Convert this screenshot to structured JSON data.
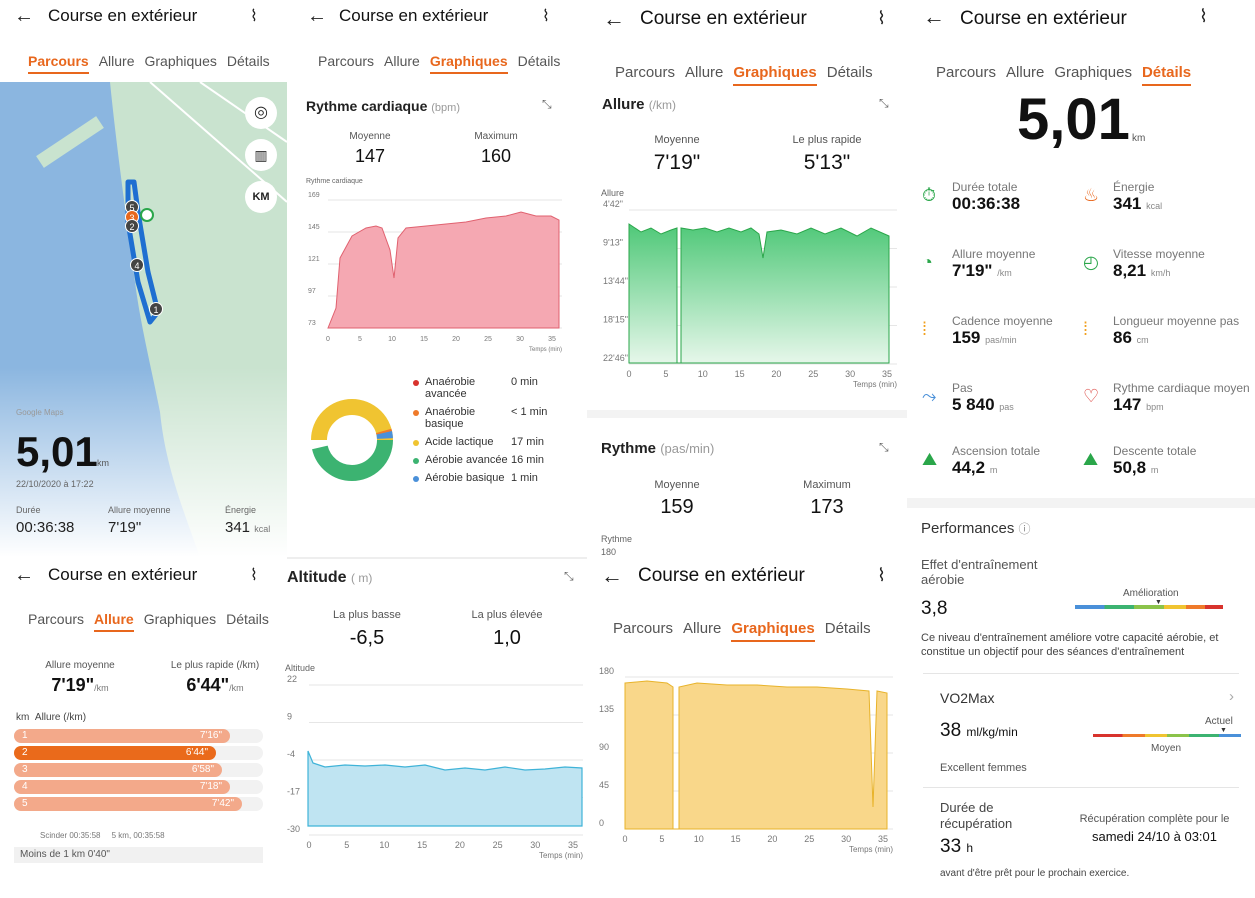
{
  "app": {
    "title": "Course en extérieur"
  },
  "tabs": [
    "Parcours",
    "Allure",
    "Graphiques",
    "Détails"
  ],
  "map": {
    "google": "Google Maps",
    "distance": "5,01",
    "unit": "km",
    "date": "22/10/2020 à 17:22",
    "duree_lbl": "Durée",
    "duree": "00:36:38",
    "allure_lbl": "Allure moyenne",
    "allure": "7'19\"",
    "energie_lbl": "Énergie",
    "energie": "341",
    "energie_unit": "kcal",
    "km_btn": "KM",
    "markers": [
      "5",
      "3",
      "2",
      "4",
      "1"
    ]
  },
  "cardiac": {
    "title": "Rythme cardiaque",
    "unit": "(bpm)",
    "avg_lbl": "Moyenne",
    "avg": "147",
    "max_lbl": "Maximum",
    "max": "160",
    "axis_lbl": "Rythme cardiaque",
    "xlabel": "Temps (min)",
    "yticks": [
      "169",
      "145",
      "121",
      "97",
      "73"
    ],
    "xticks": [
      "0",
      "5",
      "10",
      "15",
      "20",
      "25",
      "30",
      "35"
    ],
    "zones": [
      {
        "name": "Anaérobie avancée",
        "val": "0 min",
        "color": "#d8332d"
      },
      {
        "name": "Anaérobie basique",
        "val": "< 1 min",
        "color": "#ef7a2a"
      },
      {
        "name": "Acide lactique",
        "val": "17 min",
        "color": "#f0c431"
      },
      {
        "name": "Aérobie avancée",
        "val": "16 min",
        "color": "#3cb371"
      },
      {
        "name": "Aérobie basique",
        "val": "1 min",
        "color": "#4a90d9"
      }
    ]
  },
  "allure_chart": {
    "title": "Allure",
    "unit": "(/km)",
    "avg_lbl": "Moyenne",
    "avg": "7'19\"",
    "fast_lbl": "Le plus rapide",
    "fast": "5'13\"",
    "axis_lbl": "Allure",
    "yticks": [
      "4'42\"",
      "9'13\"",
      "13'44\"",
      "18'15\"",
      "22'46\""
    ],
    "xticks": [
      "0",
      "5",
      "10",
      "15",
      "20",
      "25",
      "30",
      "35"
    ],
    "xlabel": "Temps (min)"
  },
  "rythme": {
    "title": "Rythme",
    "unit": "(pas/min)",
    "avg_lbl": "Moyenne",
    "avg": "159",
    "max_lbl": "Maximum",
    "max": "173",
    "axis_lbl": "Rythme",
    "axis_top": "180",
    "yticks": [
      "180",
      "135",
      "90",
      "45",
      "0"
    ],
    "xticks": [
      "0",
      "5",
      "10",
      "15",
      "20",
      "25",
      "30",
      "35"
    ],
    "xlabel": "Temps (min)"
  },
  "allure_tab": {
    "avg_lbl": "Allure moyenne",
    "avg": "7'19\"",
    "fast_lbl": "Le plus rapide (/km)",
    "fast": "6'44\"",
    "unit": "/km",
    "col1": "km",
    "col2": "Allure (/km)",
    "rows": [
      {
        "km": "1",
        "pace": "7'16\""
      },
      {
        "km": "2",
        "pace": "6'44\""
      },
      {
        "km": "3",
        "pace": "6'58\""
      },
      {
        "km": "4",
        "pace": "7'18\""
      },
      {
        "km": "5",
        "pace": "7'42\""
      }
    ],
    "split": "Scinder 00:35:58",
    "split2": "5 km, 00:35:58",
    "less": "Moins de 1 km 0'40\""
  },
  "altitude": {
    "title": "Altitude",
    "unit": "( m)",
    "low_lbl": "La plus basse",
    "low": "-6,5",
    "high_lbl": "La plus élevée",
    "high": "1,0",
    "axis_lbl": "Altitude",
    "yticks": [
      "22",
      "9",
      "-4",
      "-17",
      "-30"
    ],
    "xticks": [
      "0",
      "5",
      "10",
      "15",
      "20",
      "25",
      "30",
      "35"
    ],
    "xlabel": "Temps (min)"
  },
  "details": {
    "distance": "5,01",
    "unit": "km",
    "items": [
      {
        "l": "Durée totale",
        "v": "00:36:38",
        "u": ""
      },
      {
        "l": "Énergie",
        "v": "341",
        "u": "kcal"
      },
      {
        "l": "Allure moyenne",
        "v": "7'19\"",
        "u": "/km"
      },
      {
        "l": "Vitesse moyenne",
        "v": "8,21",
        "u": "km/h"
      },
      {
        "l": "Cadence moyenne",
        "v": "159",
        "u": "pas/min"
      },
      {
        "l": "Longueur moyenne pas",
        "v": "86",
        "u": "cm"
      },
      {
        "l": "Pas",
        "v": "5 840",
        "u": "pas"
      },
      {
        "l": "Rythme cardiaque moyen",
        "v": "147",
        "u": "bpm"
      },
      {
        "l": "Ascension totale",
        "v": "44,2",
        "u": "m"
      },
      {
        "l": "Descente totale",
        "v": "50,8",
        "u": "m"
      }
    ],
    "perf": "Performances",
    "effet": "Effet d'entraînement aérobie",
    "effet_val": "3,8",
    "amelioration": "Amélioration",
    "desc": "Ce niveau d'entraînement améliore votre capacité aérobie, et constitue un objectif pour des séances d'entraînement",
    "vo2": "VO2Max",
    "vo2_val": "38",
    "vo2_unit": "ml/kg/min",
    "actuel": "Actuel",
    "moyen": "Moyen",
    "excellent": "Excellent femmes",
    "recup_lbl": "Durée de récupération",
    "recup_val": "33",
    "recup_unit": "h",
    "recup_full": "Récupération complète pour le",
    "recup_date": "samedi 24/10 à 03:01",
    "avant": "avant d'être prêt pour le prochain exercice."
  }
}
